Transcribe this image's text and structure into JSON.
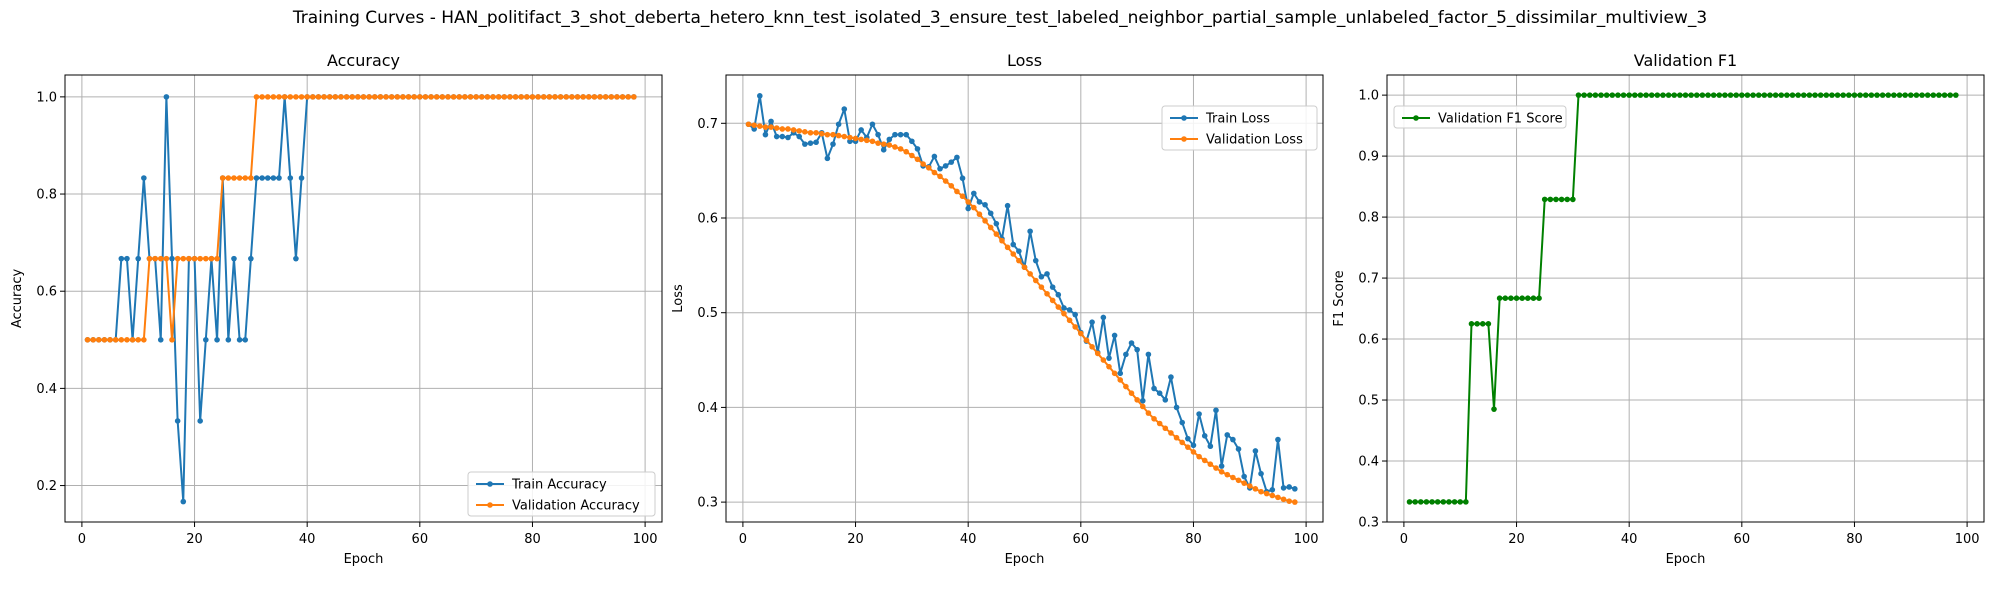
{
  "figure": {
    "suptitle": "Training Curves - HAN_politifact_3_shot_deberta_hetero_knn_test_isolated_3_ensure_test_labeled_neighbor_partial_sample_unlabeled_factor_5_dissimilar_multiview_3"
  },
  "colors": {
    "blue": "#1f77b4",
    "orange": "#ff7f0e",
    "green": "#008000",
    "grid": "#b0b0b0"
  },
  "chart_data": [
    {
      "type": "line",
      "title": "Accuracy",
      "xlabel": "Epoch",
      "ylabel": "Accuracy",
      "xlim": [
        -3,
        103
      ],
      "ylim": [
        0.125,
        1.045
      ],
      "xticks": [
        0,
        20,
        40,
        60,
        80,
        100
      ],
      "yticks": [
        0.2,
        0.4,
        0.6,
        0.8,
        1.0
      ],
      "ytick_labels": [
        "0.2",
        "0.4",
        "0.6",
        "0.8",
        "1.0"
      ],
      "grid": true,
      "legend": "lower right",
      "x": [
        1,
        2,
        3,
        4,
        5,
        6,
        7,
        8,
        9,
        10,
        11,
        12,
        13,
        14,
        15,
        16,
        17,
        18,
        19,
        20,
        21,
        22,
        23,
        24,
        25,
        26,
        27,
        28,
        29,
        30,
        31,
        32,
        33,
        34,
        35,
        36,
        37,
        38,
        39,
        40,
        41,
        42,
        43,
        44,
        45,
        46,
        47,
        48,
        49,
        50,
        51,
        52,
        53,
        54,
        55,
        56,
        57,
        58,
        59,
        60,
        61,
        62,
        63,
        64,
        65,
        66,
        67,
        68,
        69,
        70,
        71,
        72,
        73,
        74,
        75,
        76,
        77,
        78,
        79,
        80,
        81,
        82,
        83,
        84,
        85,
        86,
        87,
        88,
        89,
        90,
        91,
        92,
        93,
        94,
        95,
        96,
        97,
        98
      ],
      "series": [
        {
          "name": "Train Accuracy",
          "color": "#1f77b4",
          "values": [
            0.5,
            0.5,
            0.5,
            0.5,
            0.5,
            0.5,
            0.667,
            0.667,
            0.5,
            0.667,
            0.833,
            0.667,
            0.667,
            0.5,
            1.0,
            0.667,
            0.333,
            0.167,
            0.667,
            0.667,
            0.333,
            0.5,
            0.667,
            0.5,
            0.833,
            0.5,
            0.667,
            0.5,
            0.5,
            0.667,
            0.833,
            0.833,
            0.833,
            0.833,
            0.833,
            1.0,
            0.833,
            0.667,
            0.833,
            1.0,
            1.0,
            1.0,
            1.0,
            1.0,
            1.0,
            1.0,
            1.0,
            1.0,
            1.0,
            1.0,
            1.0,
            1.0,
            1.0,
            1.0,
            1.0,
            1.0,
            1.0,
            1.0,
            1.0,
            1.0,
            1.0,
            1.0,
            1.0,
            1.0,
            1.0,
            1.0,
            1.0,
            1.0,
            1.0,
            1.0,
            1.0,
            1.0,
            1.0,
            1.0,
            1.0,
            1.0,
            1.0,
            1.0,
            1.0,
            1.0,
            1.0,
            1.0,
            1.0,
            1.0,
            1.0,
            1.0,
            1.0,
            1.0,
            1.0,
            1.0,
            1.0,
            1.0,
            1.0,
            1.0,
            1.0,
            1.0,
            1.0,
            1.0
          ]
        },
        {
          "name": "Validation Accuracy",
          "color": "#ff7f0e",
          "values": [
            0.5,
            0.5,
            0.5,
            0.5,
            0.5,
            0.5,
            0.5,
            0.5,
            0.5,
            0.5,
            0.5,
            0.667,
            0.667,
            0.667,
            0.667,
            0.5,
            0.667,
            0.667,
            0.667,
            0.667,
            0.667,
            0.667,
            0.667,
            0.667,
            0.833,
            0.833,
            0.833,
            0.833,
            0.833,
            0.833,
            1.0,
            1.0,
            1.0,
            1.0,
            1.0,
            1.0,
            1.0,
            1.0,
            1.0,
            1.0,
            1.0,
            1.0,
            1.0,
            1.0,
            1.0,
            1.0,
            1.0,
            1.0,
            1.0,
            1.0,
            1.0,
            1.0,
            1.0,
            1.0,
            1.0,
            1.0,
            1.0,
            1.0,
            1.0,
            1.0,
            1.0,
            1.0,
            1.0,
            1.0,
            1.0,
            1.0,
            1.0,
            1.0,
            1.0,
            1.0,
            1.0,
            1.0,
            1.0,
            1.0,
            1.0,
            1.0,
            1.0,
            1.0,
            1.0,
            1.0,
            1.0,
            1.0,
            1.0,
            1.0,
            1.0,
            1.0,
            1.0,
            1.0,
            1.0,
            1.0,
            1.0,
            1.0,
            1.0,
            1.0,
            1.0,
            1.0,
            1.0,
            1.0
          ]
        }
      ]
    },
    {
      "type": "line",
      "title": "Loss",
      "xlabel": "Epoch",
      "ylabel": "Loss",
      "xlim": [
        -3,
        103
      ],
      "ylim": [
        0.279,
        0.751
      ],
      "xticks": [
        0,
        20,
        40,
        60,
        80,
        100
      ],
      "yticks": [
        0.3,
        0.4,
        0.5,
        0.6,
        0.7
      ],
      "ytick_labels": [
        "0.3",
        "0.4",
        "0.5",
        "0.6",
        "0.7"
      ],
      "grid": true,
      "legend": "upper right",
      "x": [
        1,
        2,
        3,
        4,
        5,
        6,
        7,
        8,
        9,
        10,
        11,
        12,
        13,
        14,
        15,
        16,
        17,
        18,
        19,
        20,
        21,
        22,
        23,
        24,
        25,
        26,
        27,
        28,
        29,
        30,
        31,
        32,
        33,
        34,
        35,
        36,
        37,
        38,
        39,
        40,
        41,
        42,
        43,
        44,
        45,
        46,
        47,
        48,
        49,
        50,
        51,
        52,
        53,
        54,
        55,
        56,
        57,
        58,
        59,
        60,
        61,
        62,
        63,
        64,
        65,
        66,
        67,
        68,
        69,
        70,
        71,
        72,
        73,
        74,
        75,
        76,
        77,
        78,
        79,
        80,
        81,
        82,
        83,
        84,
        85,
        86,
        87,
        88,
        89,
        90,
        91,
        92,
        93,
        94,
        95,
        96,
        97,
        98
      ],
      "series": [
        {
          "name": "Train Loss",
          "color": "#1f77b4",
          "values": [
            0.699,
            0.694,
            0.729,
            0.688,
            0.702,
            0.686,
            0.686,
            0.685,
            0.69,
            0.686,
            0.678,
            0.679,
            0.68,
            0.69,
            0.663,
            0.678,
            0.699,
            0.715,
            0.681,
            0.681,
            0.693,
            0.685,
            0.699,
            0.688,
            0.672,
            0.683,
            0.688,
            0.688,
            0.688,
            0.681,
            0.673,
            0.655,
            0.654,
            0.665,
            0.652,
            0.655,
            0.659,
            0.664,
            0.642,
            0.61,
            0.626,
            0.617,
            0.614,
            0.605,
            0.594,
            0.578,
            0.613,
            0.572,
            0.565,
            0.548,
            0.586,
            0.555,
            0.538,
            0.541,
            0.527,
            0.519,
            0.505,
            0.503,
            0.498,
            0.479,
            0.47,
            0.49,
            0.458,
            0.495,
            0.452,
            0.476,
            0.436,
            0.456,
            0.468,
            0.461,
            0.407,
            0.456,
            0.42,
            0.415,
            0.408,
            0.432,
            0.4,
            0.384,
            0.367,
            0.36,
            0.393,
            0.37,
            0.359,
            0.397,
            0.338,
            0.371,
            0.366,
            0.356,
            0.327,
            0.315,
            0.354,
            0.33,
            0.311,
            0.313,
            0.366,
            0.315,
            0.316,
            0.314
          ]
        },
        {
          "name": "Validation Loss",
          "color": "#ff7f0e",
          "values": [
            0.699,
            0.698,
            0.697,
            0.696,
            0.696,
            0.695,
            0.694,
            0.694,
            0.693,
            0.692,
            0.691,
            0.69,
            0.69,
            0.689,
            0.688,
            0.688,
            0.687,
            0.686,
            0.685,
            0.684,
            0.683,
            0.682,
            0.681,
            0.679,
            0.678,
            0.677,
            0.675,
            0.673,
            0.67,
            0.666,
            0.662,
            0.657,
            0.653,
            0.648,
            0.644,
            0.639,
            0.634,
            0.628,
            0.623,
            0.617,
            0.611,
            0.604,
            0.597,
            0.59,
            0.583,
            0.576,
            0.569,
            0.562,
            0.555,
            0.548,
            0.541,
            0.534,
            0.527,
            0.52,
            0.513,
            0.506,
            0.499,
            0.492,
            0.485,
            0.478,
            0.471,
            0.464,
            0.457,
            0.45,
            0.443,
            0.436,
            0.429,
            0.422,
            0.415,
            0.408,
            0.401,
            0.394,
            0.388,
            0.383,
            0.378,
            0.373,
            0.368,
            0.363,
            0.358,
            0.353,
            0.348,
            0.344,
            0.34,
            0.336,
            0.332,
            0.329,
            0.326,
            0.323,
            0.32,
            0.317,
            0.314,
            0.311,
            0.309,
            0.307,
            0.305,
            0.303,
            0.301,
            0.3
          ]
        }
      ]
    },
    {
      "type": "line",
      "title": "Validation F1",
      "xlabel": "Epoch",
      "ylabel": "F1 Score",
      "xlim": [
        -3,
        103
      ],
      "ylim": [
        0.3,
        1.033
      ],
      "xticks": [
        0,
        20,
        40,
        60,
        80,
        100
      ],
      "yticks": [
        0.3,
        0.4,
        0.5,
        0.6,
        0.7,
        0.8,
        0.9,
        1.0
      ],
      "ytick_labels": [
        "0.3",
        "0.4",
        "0.5",
        "0.6",
        "0.7",
        "0.8",
        "0.9",
        "1.0"
      ],
      "grid": true,
      "legend": "upper left",
      "x": [
        1,
        2,
        3,
        4,
        5,
        6,
        7,
        8,
        9,
        10,
        11,
        12,
        13,
        14,
        15,
        16,
        17,
        18,
        19,
        20,
        21,
        22,
        23,
        24,
        25,
        26,
        27,
        28,
        29,
        30,
        31,
        32,
        33,
        34,
        35,
        36,
        37,
        38,
        39,
        40,
        41,
        42,
        43,
        44,
        45,
        46,
        47,
        48,
        49,
        50,
        51,
        52,
        53,
        54,
        55,
        56,
        57,
        58,
        59,
        60,
        61,
        62,
        63,
        64,
        65,
        66,
        67,
        68,
        69,
        70,
        71,
        72,
        73,
        74,
        75,
        76,
        77,
        78,
        79,
        80,
        81,
        82,
        83,
        84,
        85,
        86,
        87,
        88,
        89,
        90,
        91,
        92,
        93,
        94,
        95,
        96,
        97,
        98
      ],
      "series": [
        {
          "name": "Validation F1 Score",
          "color": "#008000",
          "values": [
            0.333,
            0.333,
            0.333,
            0.333,
            0.333,
            0.333,
            0.333,
            0.333,
            0.333,
            0.333,
            0.333,
            0.625,
            0.625,
            0.625,
            0.625,
            0.485,
            0.667,
            0.667,
            0.667,
            0.667,
            0.667,
            0.667,
            0.667,
            0.667,
            0.829,
            0.829,
            0.829,
            0.829,
            0.829,
            0.829,
            1.0,
            1.0,
            1.0,
            1.0,
            1.0,
            1.0,
            1.0,
            1.0,
            1.0,
            1.0,
            1.0,
            1.0,
            1.0,
            1.0,
            1.0,
            1.0,
            1.0,
            1.0,
            1.0,
            1.0,
            1.0,
            1.0,
            1.0,
            1.0,
            1.0,
            1.0,
            1.0,
            1.0,
            1.0,
            1.0,
            1.0,
            1.0,
            1.0,
            1.0,
            1.0,
            1.0,
            1.0,
            1.0,
            1.0,
            1.0,
            1.0,
            1.0,
            1.0,
            1.0,
            1.0,
            1.0,
            1.0,
            1.0,
            1.0,
            1.0,
            1.0,
            1.0,
            1.0,
            1.0,
            1.0,
            1.0,
            1.0,
            1.0,
            1.0,
            1.0,
            1.0,
            1.0,
            1.0,
            1.0,
            1.0,
            1.0,
            1.0,
            1.0
          ]
        }
      ]
    }
  ]
}
